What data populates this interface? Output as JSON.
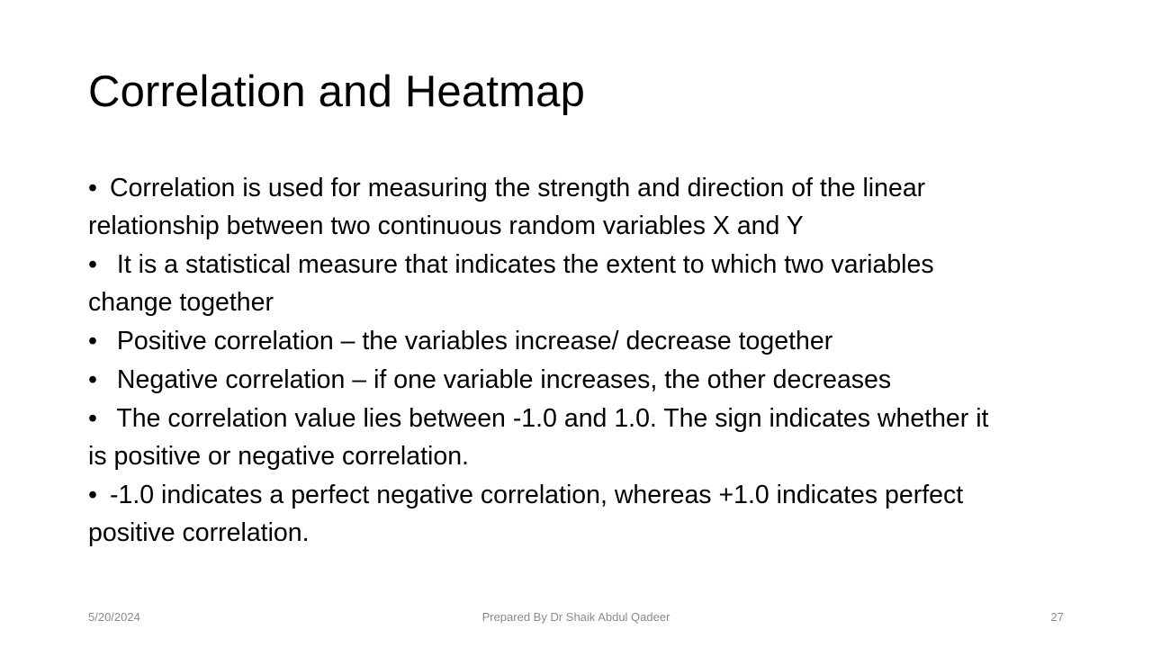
{
  "slide": {
    "title": "Correlation and Heatmap",
    "bullets": [
      {
        "dot": "•",
        "text": "Correlation is used for measuring the strength and direction of the linear relationship between two continuous random variables X and Y"
      },
      {
        "dot": "•",
        "text": " It is a statistical measure that indicates the extent to which two variables change together"
      },
      {
        "dot": "•",
        "text": " Positive correlation – the variables increase/ decrease together"
      },
      {
        "dot": "•",
        "text": " Negative correlation – if one variable increases, the other decreases"
      },
      {
        "dot": "•",
        "text": " The correlation value lies between -1.0 and 1.0. The sign indicates whether it is positive or negative correlation."
      },
      {
        "dot": "•",
        "text": "-1.0 indicates a perfect negative correlation, whereas +1.0 indicates perfect positive correlation."
      }
    ]
  },
  "footer": {
    "date": "5/20/2024",
    "author": "Prepared By Dr Shaik Abdul Qadeer",
    "page_number": "27"
  }
}
